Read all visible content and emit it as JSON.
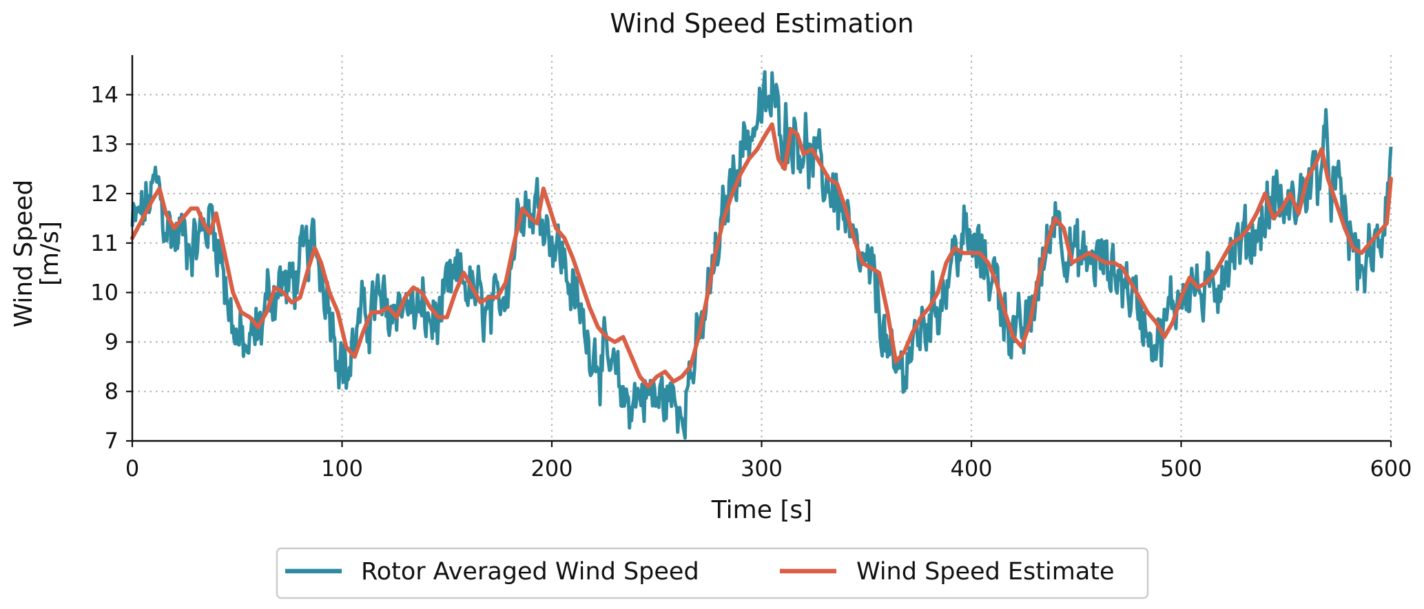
{
  "chart_data": {
    "type": "line",
    "title": "Wind Speed Estimation",
    "xlabel": "Time [s]",
    "ylabel_lines": [
      "Wind Speed",
      "[m/s]"
    ],
    "xlim": [
      0,
      600
    ],
    "ylim": [
      7,
      14.8
    ],
    "xticks": [
      0,
      100,
      200,
      300,
      400,
      500,
      600
    ],
    "yticks": [
      7,
      8,
      9,
      10,
      11,
      12,
      13,
      14
    ],
    "grid": true,
    "legend_position": "bottom-center",
    "series": [
      {
        "name": "Rotor Averaged Wind Speed",
        "color": "#2E8BA0",
        "noisy": true,
        "x": [
          0,
          5,
          10,
          12,
          15,
          20,
          25,
          30,
          35,
          38,
          42,
          46,
          50,
          55,
          60,
          65,
          70,
          75,
          80,
          85,
          88,
          92,
          96,
          100,
          103,
          107,
          112,
          117,
          122,
          127,
          132,
          137,
          142,
          147,
          152,
          157,
          162,
          167,
          172,
          177,
          182,
          186,
          190,
          194,
          198,
          202,
          206,
          210,
          215,
          220,
          225,
          230,
          235,
          240,
          245,
          250,
          255,
          260,
          265,
          270,
          275,
          280,
          285,
          290,
          295,
          300,
          305,
          310,
          315,
          320,
          325,
          330,
          335,
          340,
          345,
          350,
          355,
          360,
          363,
          367,
          372,
          377,
          382,
          387,
          392,
          397,
          402,
          407,
          412,
          417,
          422,
          427,
          432,
          437,
          440,
          445,
          450,
          455,
          460,
          465,
          470,
          475,
          480,
          485,
          490,
          495,
          500,
          505,
          510,
          515,
          520,
          525,
          530,
          535,
          540,
          545,
          550,
          555,
          560,
          565,
          568,
          572,
          576,
          580,
          585,
          590,
          595,
          600
        ],
        "values": [
          11.3,
          11.6,
          12.0,
          12.2,
          11.5,
          11.1,
          11.2,
          11.0,
          11.3,
          11.6,
          10.8,
          9.8,
          9.0,
          8.8,
          9.2,
          9.9,
          10.2,
          10.1,
          10.5,
          10.9,
          10.8,
          10.2,
          9.4,
          8.6,
          8.4,
          9.2,
          9.6,
          9.8,
          9.5,
          9.9,
          9.7,
          9.6,
          9.4,
          9.5,
          10.1,
          10.3,
          10.0,
          9.6,
          9.4,
          10.1,
          11.0,
          12.2,
          11.6,
          11.8,
          11.4,
          11.0,
          10.6,
          10.0,
          9.3,
          8.9,
          8.6,
          8.2,
          7.8,
          7.9,
          8.0,
          7.8,
          7.9,
          7.7,
          8.2,
          8.9,
          10.0,
          11.0,
          12.2,
          12.9,
          13.3,
          13.6,
          13.9,
          13.4,
          13.3,
          13.0,
          12.6,
          12.3,
          12.1,
          11.4,
          10.6,
          10.4,
          10.0,
          8.8,
          8.2,
          8.5,
          8.9,
          9.3,
          9.7,
          10.1,
          10.8,
          11.1,
          10.8,
          10.6,
          10.2,
          9.5,
          9.0,
          9.3,
          10.2,
          11.0,
          11.8,
          11.0,
          10.7,
          10.6,
          10.7,
          10.5,
          10.4,
          10.1,
          9.7,
          9.3,
          9.0,
          9.6,
          10.1,
          10.2,
          9.9,
          10.0,
          10.6,
          10.9,
          11.0,
          11.2,
          11.5,
          12.0,
          11.6,
          11.8,
          12.2,
          12.4,
          12.9,
          12.2,
          11.8,
          11.2,
          10.5,
          10.6,
          11.0,
          12.8
        ]
      },
      {
        "name": "Wind Speed Estimate",
        "color": "#D95F45",
        "noisy": false,
        "x": [
          0,
          5,
          10,
          13,
          16,
          20,
          24,
          28,
          31,
          34,
          37,
          40,
          44,
          48,
          52,
          56,
          60,
          64,
          68,
          72,
          76,
          80,
          84,
          87,
          90,
          94,
          98,
          102,
          106,
          110,
          114,
          118,
          122,
          126,
          130,
          134,
          138,
          142,
          146,
          150,
          154,
          158,
          162,
          166,
          170,
          174,
          178,
          182,
          186,
          190,
          193,
          196,
          199,
          202,
          206,
          210,
          214,
          218,
          222,
          226,
          230,
          234,
          238,
          242,
          246,
          250,
          254,
          258,
          262,
          266,
          270,
          274,
          278,
          282,
          286,
          290,
          294,
          298,
          302,
          305,
          308,
          311,
          314,
          317,
          320,
          324,
          328,
          332,
          336,
          340,
          344,
          348,
          352,
          356,
          360,
          364,
          368,
          372,
          376,
          380,
          384,
          388,
          392,
          396,
          400,
          404,
          408,
          412,
          416,
          420,
          424,
          428,
          432,
          436,
          440,
          444,
          448,
          452,
          456,
          460,
          464,
          468,
          472,
          476,
          480,
          484,
          488,
          492,
          496,
          500,
          504,
          508,
          512,
          516,
          520,
          524,
          528,
          532,
          536,
          540,
          544,
          548,
          552,
          556,
          560,
          564,
          567,
          570,
          574,
          578,
          582,
          586,
          590,
          594,
          598,
          600
        ],
        "values": [
          11.1,
          11.5,
          11.9,
          12.1,
          11.6,
          11.3,
          11.5,
          11.7,
          11.7,
          11.4,
          11.2,
          11.6,
          10.8,
          10.0,
          9.6,
          9.5,
          9.3,
          9.6,
          10.1,
          10.0,
          9.8,
          9.9,
          10.5,
          10.9,
          10.6,
          10.0,
          9.6,
          8.9,
          8.7,
          9.2,
          9.6,
          9.6,
          9.7,
          9.5,
          9.9,
          10.1,
          10.0,
          9.7,
          9.5,
          9.5,
          10.0,
          10.4,
          10.1,
          9.8,
          9.9,
          9.9,
          10.2,
          11.0,
          11.7,
          11.5,
          11.4,
          12.1,
          11.7,
          11.3,
          11.1,
          10.7,
          10.2,
          9.7,
          9.3,
          9.1,
          9.0,
          9.1,
          8.7,
          8.3,
          8.1,
          8.3,
          8.4,
          8.2,
          8.3,
          8.5,
          9.1,
          9.9,
          10.8,
          11.5,
          12.0,
          12.4,
          12.7,
          12.9,
          13.2,
          13.4,
          12.7,
          12.5,
          13.3,
          13.2,
          12.8,
          12.9,
          12.6,
          12.3,
          12.2,
          11.7,
          11.1,
          10.6,
          10.5,
          10.4,
          9.6,
          8.6,
          8.8,
          9.2,
          9.5,
          9.7,
          10.0,
          10.6,
          10.9,
          10.8,
          10.8,
          10.8,
          10.6,
          10.2,
          9.6,
          9.1,
          8.9,
          9.4,
          10.3,
          11.0,
          11.5,
          11.3,
          10.6,
          10.7,
          10.8,
          10.7,
          10.6,
          10.6,
          10.5,
          10.2,
          9.9,
          9.6,
          9.4,
          9.1,
          9.4,
          9.9,
          10.3,
          10.1,
          10.2,
          10.4,
          10.7,
          11.0,
          11.1,
          11.3,
          11.6,
          12.0,
          11.5,
          11.7,
          12.0,
          11.6,
          12.3,
          12.6,
          12.9,
          12.3,
          11.8,
          11.3,
          10.9,
          10.8,
          11.0,
          11.2,
          11.4,
          12.3
        ]
      }
    ]
  }
}
